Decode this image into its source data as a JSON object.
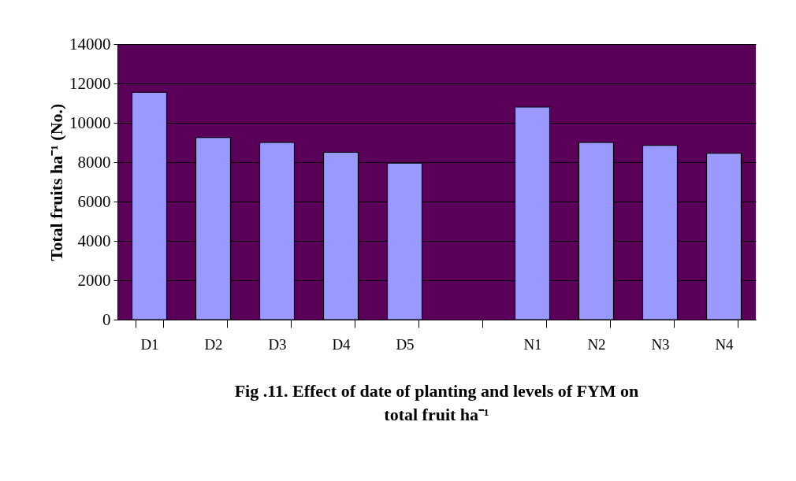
{
  "chart_data": {
    "type": "bar",
    "title": "Fig .11. Effect  of date of planting and levels of FYM on\ntotal fruit ha⁻¹",
    "ylabel": "Total fruits ha⁻¹ (No.)",
    "categories": [
      "D1",
      "D2",
      "D3",
      "D4",
      "D5",
      null,
      "N1",
      "N2",
      "N3",
      "N4"
    ],
    "values": [
      11550,
      9250,
      9000,
      8500,
      7950,
      null,
      10800,
      9000,
      8850,
      8450
    ],
    "color": "#9999ff",
    "ylim": [
      0,
      14000
    ],
    "yticks": [
      0,
      2000,
      4000,
      6000,
      8000,
      10000,
      12000,
      14000
    ],
    "grid": "y"
  }
}
